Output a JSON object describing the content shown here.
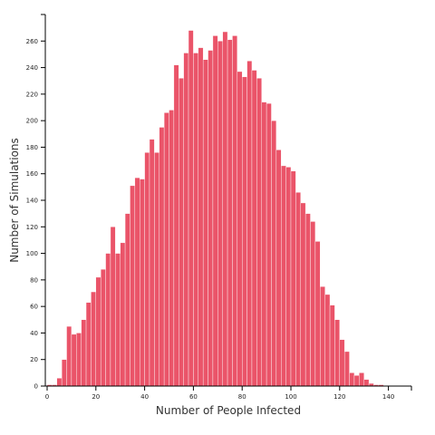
{
  "chart_data": {
    "type": "bar",
    "xlabel": "Number of People Infected",
    "ylabel": "Number of Simulations",
    "xlim": [
      0,
      150
    ],
    "ylim": [
      0,
      280
    ],
    "xticks": [
      0,
      20,
      40,
      60,
      80,
      100,
      120,
      140
    ],
    "yticks": [
      0,
      20,
      40,
      60,
      80,
      100,
      120,
      140,
      160,
      180,
      200,
      220,
      240,
      260
    ],
    "bin_width": 2,
    "bin_starts": [
      0,
      2,
      4,
      6,
      8,
      10,
      12,
      14,
      16,
      18,
      20,
      22,
      24,
      26,
      28,
      30,
      32,
      34,
      36,
      38,
      40,
      42,
      44,
      46,
      48,
      50,
      52,
      54,
      56,
      58,
      60,
      62,
      64,
      66,
      68,
      70,
      72,
      74,
      76,
      78,
      80,
      82,
      84,
      86,
      88,
      90,
      92,
      94,
      96,
      98,
      100,
      102,
      104,
      106,
      108,
      110,
      112,
      114,
      116,
      118,
      120,
      122,
      124,
      126,
      128,
      130,
      132,
      134,
      136,
      138,
      140,
      142,
      144,
      146,
      148
    ],
    "values": [
      1,
      1,
      6,
      20,
      45,
      39,
      40,
      50,
      63,
      71,
      82,
      88,
      100,
      120,
      100,
      108,
      130,
      151,
      157,
      156,
      176,
      186,
      176,
      195,
      206,
      208,
      242,
      232,
      251,
      268,
      251,
      255,
      246,
      253,
      264,
      260,
      267,
      261,
      264,
      237,
      233,
      245,
      238,
      232,
      214,
      213,
      200,
      178,
      166,
      165,
      162,
      146,
      138,
      130,
      124,
      109,
      75,
      69,
      61,
      50,
      35,
      26,
      10,
      8,
      10,
      5,
      2,
      1,
      1,
      0,
      0,
      0,
      0,
      0,
      0
    ]
  }
}
